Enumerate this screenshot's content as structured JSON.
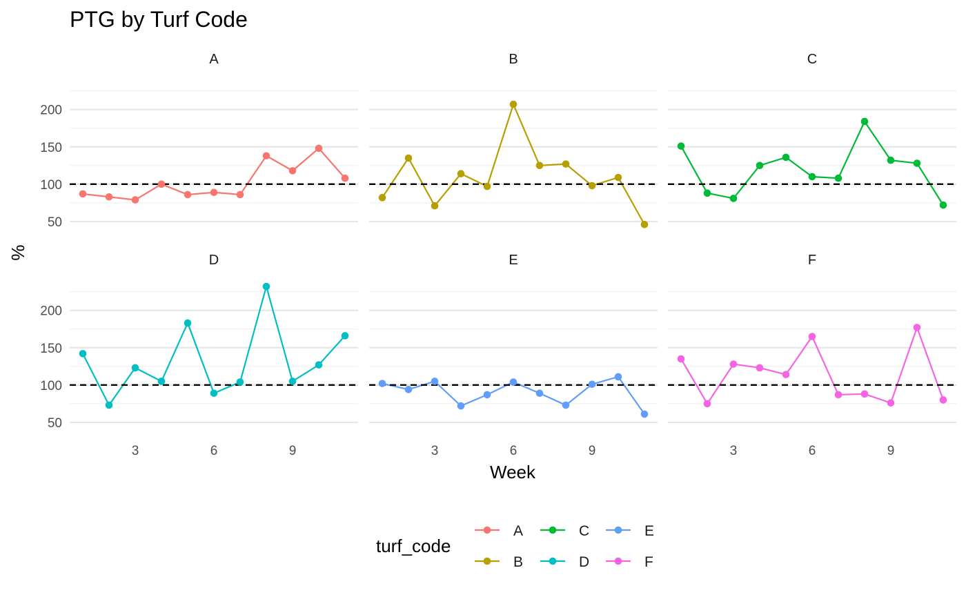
{
  "chart_data": {
    "type": "line",
    "title": "PTG by Turf Code",
    "xlabel": "Week",
    "ylabel": "%",
    "x": [
      1,
      2,
      3,
      4,
      5,
      6,
      7,
      8,
      9,
      10,
      11
    ],
    "xticks": [
      3,
      6,
      9
    ],
    "yticks": [
      50,
      100,
      150,
      200
    ],
    "xlim": [
      0.5,
      11.5
    ],
    "ylim": [
      37,
      245
    ],
    "reference_line": 100,
    "legend": {
      "title": "turf_code",
      "placement": "bottom"
    },
    "series": [
      {
        "name": "A",
        "color": "#F8766D",
        "values": [
          87,
          83,
          79,
          100,
          86,
          89,
          86,
          138,
          118,
          148,
          108
        ]
      },
      {
        "name": "B",
        "color": "#B79F00",
        "values": [
          82,
          135,
          71,
          114,
          97,
          207,
          125,
          127,
          98,
          109,
          46
        ]
      },
      {
        "name": "C",
        "color": "#00BA38",
        "values": [
          151,
          88,
          81,
          125,
          136,
          110,
          108,
          184,
          132,
          128,
          72
        ]
      },
      {
        "name": "D",
        "color": "#00BFC4",
        "values": [
          142,
          73,
          123,
          105,
          183,
          89,
          104,
          232,
          105,
          127,
          166
        ]
      },
      {
        "name": "E",
        "color": "#619CFF",
        "values": [
          102,
          94,
          105,
          72,
          87,
          104,
          89,
          73,
          101,
          111,
          61
        ]
      },
      {
        "name": "F",
        "color": "#F564E3",
        "values": [
          135,
          75,
          128,
          123,
          114,
          165,
          87,
          88,
          76,
          177,
          80
        ]
      }
    ]
  }
}
